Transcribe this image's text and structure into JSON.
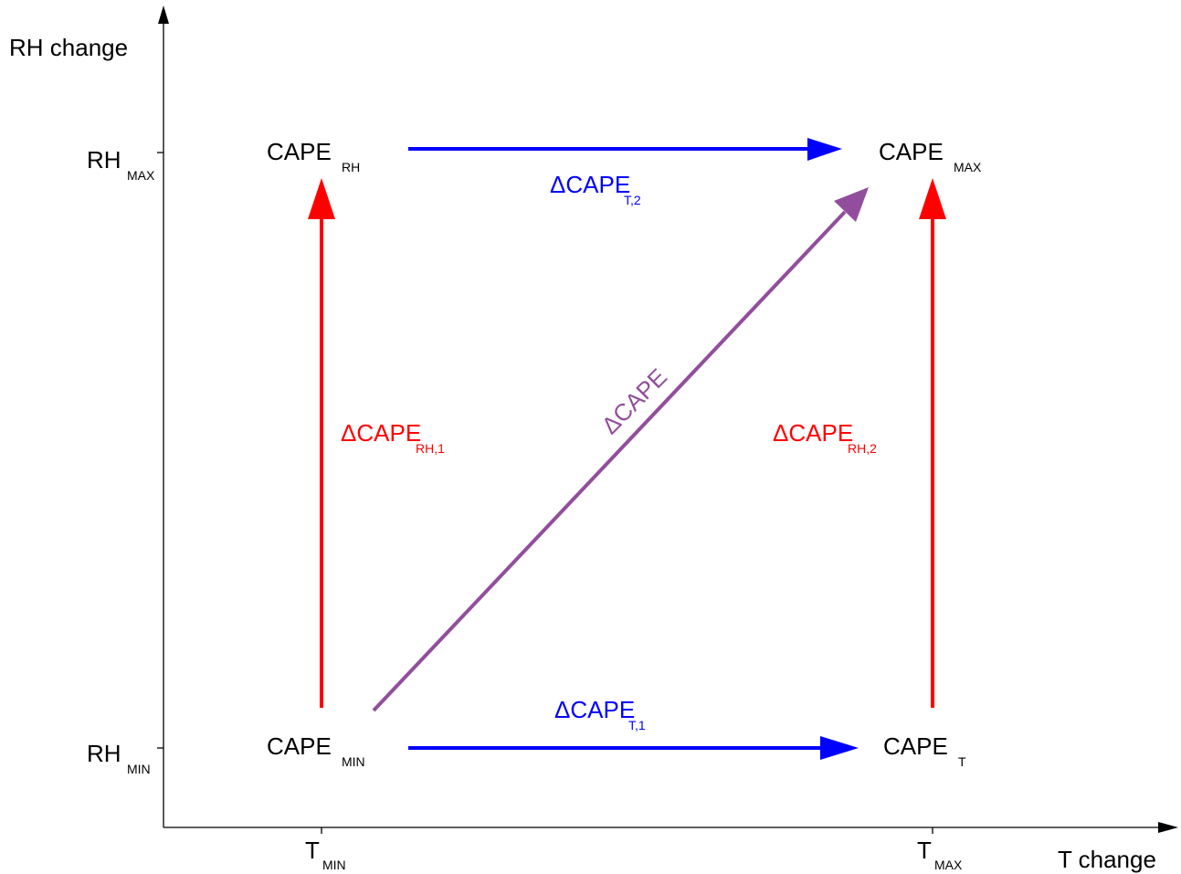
{
  "axes": {
    "y_label": "RH change",
    "x_label": "T change",
    "y_ticks": [
      {
        "main": "RH",
        "sub": "MAX"
      },
      {
        "main": "RH",
        "sub": "MIN"
      }
    ],
    "x_ticks": [
      {
        "main": "T",
        "sub": "MIN"
      },
      {
        "main": "T",
        "sub": "MAX"
      }
    ]
  },
  "nodes": [
    {
      "main": "CAPE",
      "sub": "RH"
    },
    {
      "main": "CAPE",
      "sub": "MAX"
    },
    {
      "main": "CAPE",
      "sub": "MIN"
    },
    {
      "main": "CAPE",
      "sub": "T"
    }
  ],
  "arrows": [
    {
      "main": "ΔCAPE",
      "sub": "T,2"
    },
    {
      "main": "ΔCAPE",
      "sub": "T,1"
    },
    {
      "main": "ΔCAPE",
      "sub": "RH,1"
    },
    {
      "main": "ΔCAPE",
      "sub": "RH,2"
    },
    {
      "main": "ΔCAPE"
    }
  ]
}
